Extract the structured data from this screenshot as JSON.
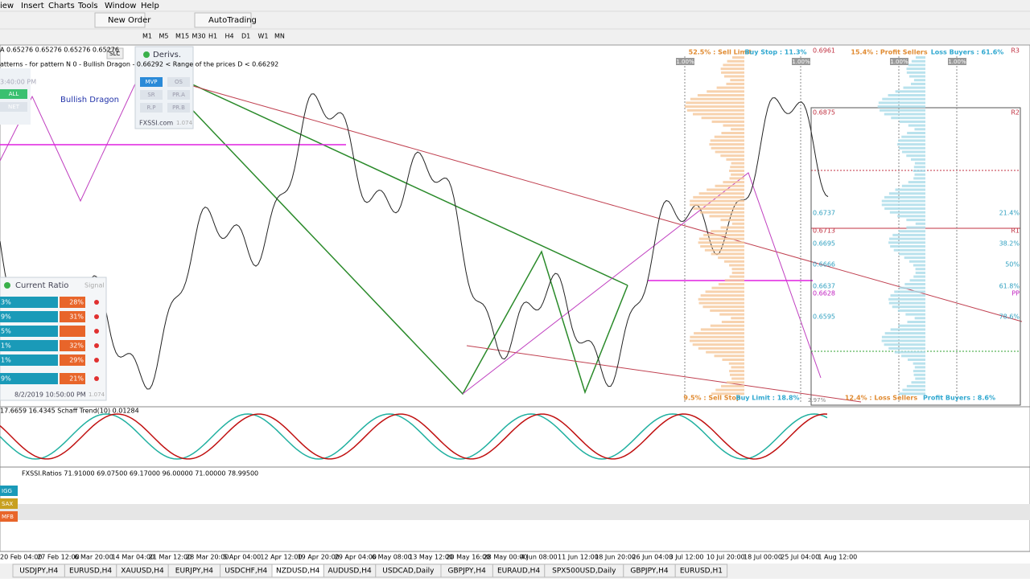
{
  "menu": [
    "iew",
    "Insert",
    "Charts",
    "Tools",
    "Window",
    "Help"
  ],
  "toolbar": {
    "new_order": "New Order",
    "autotrading": "AutoTrading"
  },
  "timeframes": [
    "M1",
    "M5",
    "M15",
    "M30",
    "H1",
    "H4",
    "D1",
    "W1",
    "MN"
  ],
  "chart": {
    "header": "A 0.65276 0.65276 0.65276 0.65276",
    "pattern": "atterns - for pattern N 0 - Bullish Dragon - 0.66292 < Range of the prices D < 0.66292",
    "bullish": "Bullish Dragon",
    "slc": "SLC",
    "left_time": "3:40:00 PM",
    "left_buttons": [
      "ALL",
      "NET"
    ]
  },
  "derivs": {
    "title": "Derivs.",
    "buttons": [
      "MVP",
      "OS",
      "SR",
      "PR.A",
      "R.P",
      "PR.B"
    ],
    "footer": "FXSSI.com",
    "version": "1.074"
  },
  "sentiment": {
    "top": [
      "52.5% : Sell Limit",
      "Buy Stop : 11.3%",
      "15.4% : Profit Sellers",
      "Loss Buyers : 61.6%"
    ],
    "bottom": [
      "9.5% : Sell Stop",
      "Buy Limit : 18.8%",
      "12.4% : Loss Sellers",
      "Profit Buyers : 8.6%"
    ],
    "scale": [
      "1.00%",
      "1.00%",
      "1.00%",
      "1.00%"
    ],
    "bottom_scale": "2.97%"
  },
  "levels": [
    {
      "price": "0.6961",
      "tag": "R3"
    },
    {
      "price": "0.6875",
      "tag": "R2"
    },
    {
      "price": "0.6737",
      "tag": "21.4%"
    },
    {
      "price": "0.6713",
      "tag": "R1"
    },
    {
      "price": "0.6695",
      "tag": "38.2%"
    },
    {
      "price": "0.6666",
      "tag": "50%"
    },
    {
      "price": "0.6637",
      "tag": "61.8%"
    },
    {
      "price": "0.6628",
      "tag": "PP"
    },
    {
      "price": "0.6595",
      "tag": "78.6%"
    }
  ],
  "ratio": {
    "title": "Current Ratio",
    "signal": "Signal",
    "rows": [
      [
        "3%",
        "28%"
      ],
      [
        "9%",
        "31%"
      ],
      [
        "5%",
        ""
      ],
      [
        "1%",
        "32%"
      ],
      [
        "1%",
        "29%"
      ],
      [
        "9%",
        "21%"
      ]
    ],
    "time": "8/2/2019 10:50:00 PM",
    "version": "1.074"
  },
  "schaff": "17.6659 16.4345 Schaff Trend(10) 0.01284",
  "ratios": {
    "header": "FXSSI.Ratios 71.91000 69.07500 69.17000 96.00000 71.00000 78.99500",
    "labels": [
      "IGG",
      "SAX",
      "MFB"
    ]
  },
  "dates": [
    "20 Feb 04:00",
    "27 Feb 12:00",
    "6 Mar 20:00",
    "14 Mar 04:00",
    "21 Mar 12:00",
    "28 Mar 20:00",
    "5 Apr 04:00",
    "12 Apr 12:00",
    "19 Apr 20:00",
    "29 Apr 04:00",
    "6 May 08:00",
    "13 May 12:00",
    "20 May 16:00",
    "28 May 00:00",
    "4 Jun 08:00",
    "11 Jun 12:00",
    "18 Jun 20:00",
    "26 Jun 04:00",
    "3 Jul 12:00",
    "10 Jul 20:00",
    "18 Jul 00:00",
    "25 Jul 04:00",
    "1 Aug 12:00"
  ],
  "tabs": [
    "USDJPY,H4",
    "EURUSD,H4",
    "XAUUSD,H4",
    "EURJPY,H4",
    "USDCHF,H4",
    "NZDUSD,H4",
    "AUDUSD,H4",
    "USDCAD,Daily",
    "GBPJPY,H4",
    "EURAUD,H4",
    "SPX500USD,Daily",
    "GBPJPY,H4",
    "EURUSD,H1"
  ],
  "active_tab": 5
}
